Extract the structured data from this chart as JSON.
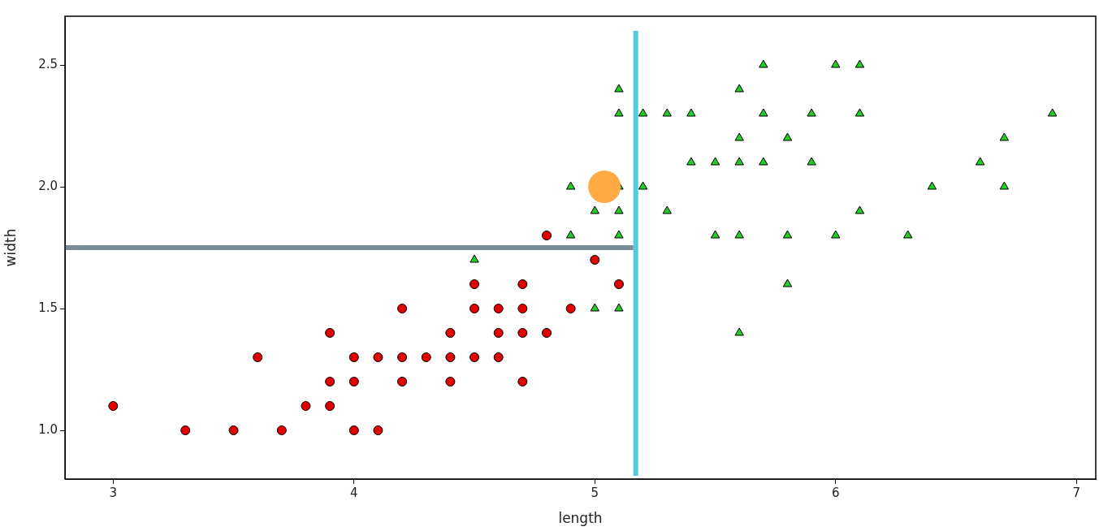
{
  "chart_data": {
    "type": "scatter",
    "xlabel": "length",
    "ylabel": "width",
    "xlim": [
      2.8,
      7.08
    ],
    "ylim": [
      0.8,
      2.7
    ],
    "xticks": [
      3,
      4,
      5,
      6,
      7
    ],
    "yticks": [
      {
        "value": 1,
        "label": "1.0"
      },
      1.5,
      {
        "value": 2,
        "label": "2.0"
      },
      2.5
    ],
    "grid": false,
    "legend": false,
    "series": [
      {
        "color": "#e00000",
        "marker": "circle",
        "x": [
          3,
          3.3,
          3.5,
          3.6,
          3.7,
          3.8,
          3.9,
          3.9,
          3.9,
          4.0,
          4.0,
          4.0,
          4.1,
          4.1,
          4.2,
          4.2,
          4.2,
          4.3,
          4.4,
          4.4,
          4.4,
          4.5,
          4.5,
          4.5,
          4.6,
          4.6,
          4.6,
          4.7,
          4.7,
          4.7,
          4.7,
          4.8,
          4.8,
          4.9,
          5.0,
          5.1
        ],
        "values": [
          1.1,
          1.0,
          1.0,
          1.3,
          1.0,
          1.1,
          1.4,
          1.2,
          1.1,
          1.3,
          1.2,
          1.0,
          1.3,
          1.0,
          1.5,
          1.3,
          1.2,
          1.3,
          1.4,
          1.3,
          1.2,
          1.6,
          1.5,
          1.3,
          1.5,
          1.4,
          1.3,
          1.6,
          1.5,
          1.4,
          1.2,
          1.8,
          1.4,
          1.5,
          1.7,
          1.6
        ]
      },
      {
        "color": "#22cc22",
        "marker": "triangle",
        "x": [
          4.5,
          4.9,
          4.9,
          5.0,
          5.0,
          5.1,
          5.1,
          5.1,
          5.1,
          5.1,
          5.1,
          5.2,
          5.2,
          5.3,
          5.3,
          5.4,
          5.4,
          5.5,
          5.5,
          5.6,
          5.6,
          5.6,
          5.6,
          5.6,
          5.7,
          5.7,
          5.7,
          5.8,
          5.8,
          5.8,
          5.9,
          5.9,
          6.0,
          6.0,
          6.1,
          6.1,
          6.1,
          6.3,
          6.4,
          6.6,
          6.7,
          6.7,
          6.9
        ],
        "values": [
          1.7,
          2.0,
          1.8,
          1.9,
          1.5,
          2.4,
          2.3,
          2.0,
          1.9,
          1.8,
          1.5,
          2.3,
          2.0,
          2.3,
          1.9,
          2.3,
          2.1,
          2.1,
          1.8,
          2.4,
          2.2,
          2.1,
          1.8,
          1.4,
          2.5,
          2.3,
          2.1,
          2.2,
          1.8,
          1.6,
          2.3,
          2.1,
          2.5,
          1.8,
          2.5,
          2.3,
          1.9,
          1.8,
          2.0,
          2.1,
          2.2,
          2.0,
          2.3
        ]
      },
      {
        "color": "#ffaa44",
        "marker": "circle",
        "x": [
          5.04
        ],
        "values": [
          2.0
        ]
      }
    ],
    "ref_lines": [
      {
        "axis": "x",
        "value": 5.17,
        "color": "#4ecde0"
      },
      {
        "axis": "y",
        "value": 1.75,
        "color": "#7a8c96"
      }
    ]
  }
}
